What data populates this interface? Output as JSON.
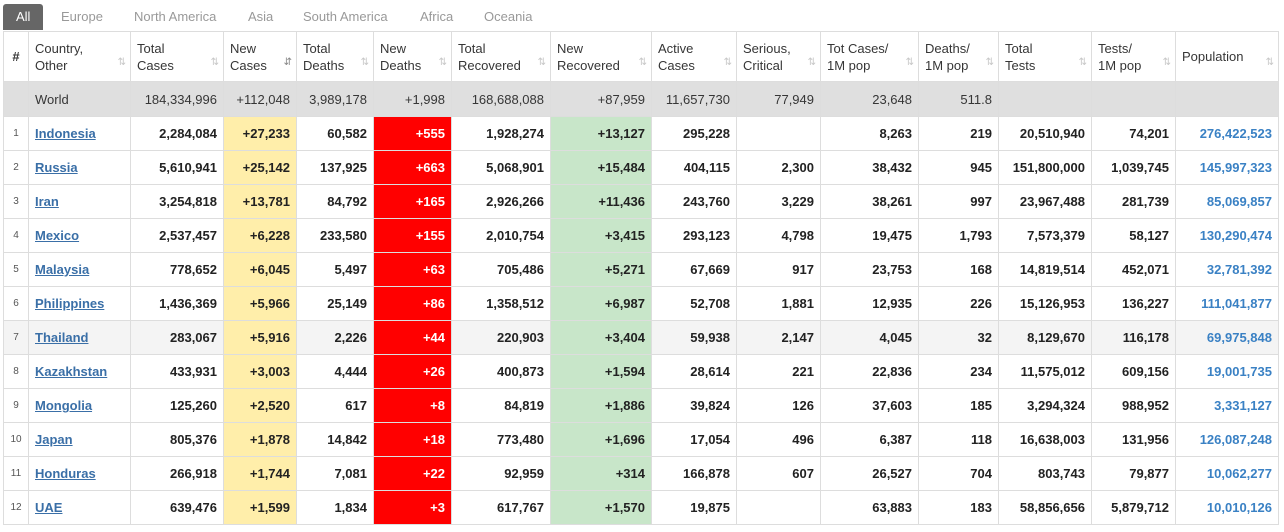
{
  "tabs": [
    "All",
    "Europe",
    "North America",
    "Asia",
    "South America",
    "Africa",
    "Oceania"
  ],
  "headers": [
    {
      "line1": "#",
      "line2": ""
    },
    {
      "line1": "Country,",
      "line2": "Other"
    },
    {
      "line1": "Total",
      "line2": "Cases"
    },
    {
      "line1": "New",
      "line2": "Cases"
    },
    {
      "line1": "Total",
      "line2": "Deaths"
    },
    {
      "line1": "New",
      "line2": "Deaths"
    },
    {
      "line1": "Total",
      "line2": "Recovered"
    },
    {
      "line1": "New",
      "line2": "Recovered"
    },
    {
      "line1": "Active",
      "line2": "Cases"
    },
    {
      "line1": "Serious,",
      "line2": "Critical"
    },
    {
      "line1": "Tot Cases/",
      "line2": "1M pop"
    },
    {
      "line1": "Deaths/",
      "line2": "1M pop"
    },
    {
      "line1": "Total",
      "line2": "Tests"
    },
    {
      "line1": "Tests/",
      "line2": "1M pop"
    },
    {
      "line1": "Population",
      "line2": ""
    }
  ],
  "sort_icon": "⇅",
  "sort_active_icon": "⇵",
  "world": [
    "",
    "World",
    "184,334,996",
    "+112,048",
    "3,989,178",
    "+1,998",
    "168,688,088",
    "+87,959",
    "11,657,730",
    "77,949",
    "23,648",
    "511.8",
    "",
    "",
    ""
  ],
  "rows": [
    [
      "1",
      "Indonesia",
      "2,284,084",
      "+27,233",
      "60,582",
      "+555",
      "1,928,274",
      "+13,127",
      "295,228",
      "",
      "8,263",
      "219",
      "20,510,940",
      "74,201",
      "276,422,523"
    ],
    [
      "2",
      "Russia",
      "5,610,941",
      "+25,142",
      "137,925",
      "+663",
      "5,068,901",
      "+15,484",
      "404,115",
      "2,300",
      "38,432",
      "945",
      "151,800,000",
      "1,039,745",
      "145,997,323"
    ],
    [
      "3",
      "Iran",
      "3,254,818",
      "+13,781",
      "84,792",
      "+165",
      "2,926,266",
      "+11,436",
      "243,760",
      "3,229",
      "38,261",
      "997",
      "23,967,488",
      "281,739",
      "85,069,857"
    ],
    [
      "4",
      "Mexico",
      "2,537,457",
      "+6,228",
      "233,580",
      "+155",
      "2,010,754",
      "+3,415",
      "293,123",
      "4,798",
      "19,475",
      "1,793",
      "7,573,379",
      "58,127",
      "130,290,474"
    ],
    [
      "5",
      "Malaysia",
      "778,652",
      "+6,045",
      "5,497",
      "+63",
      "705,486",
      "+5,271",
      "67,669",
      "917",
      "23,753",
      "168",
      "14,819,514",
      "452,071",
      "32,781,392"
    ],
    [
      "6",
      "Philippines",
      "1,436,369",
      "+5,966",
      "25,149",
      "+86",
      "1,358,512",
      "+6,987",
      "52,708",
      "1,881",
      "12,935",
      "226",
      "15,126,953",
      "136,227",
      "111,041,877"
    ],
    [
      "7",
      "Thailand",
      "283,067",
      "+5,916",
      "2,226",
      "+44",
      "220,903",
      "+3,404",
      "59,938",
      "2,147",
      "4,045",
      "32",
      "8,129,670",
      "116,178",
      "69,975,848"
    ],
    [
      "8",
      "Kazakhstan",
      "433,931",
      "+3,003",
      "4,444",
      "+26",
      "400,873",
      "+1,594",
      "28,614",
      "221",
      "22,836",
      "234",
      "11,575,012",
      "609,156",
      "19,001,735"
    ],
    [
      "9",
      "Mongolia",
      "125,260",
      "+2,520",
      "617",
      "+8",
      "84,819",
      "+1,886",
      "39,824",
      "126",
      "37,603",
      "185",
      "3,294,324",
      "988,952",
      "3,331,127"
    ],
    [
      "10",
      "Japan",
      "805,376",
      "+1,878",
      "14,842",
      "+18",
      "773,480",
      "+1,696",
      "17,054",
      "496",
      "6,387",
      "118",
      "16,638,003",
      "131,956",
      "126,087,248"
    ],
    [
      "11",
      "Honduras",
      "266,918",
      "+1,744",
      "7,081",
      "+22",
      "92,959",
      "+314",
      "166,878",
      "607",
      "26,527",
      "704",
      "803,743",
      "79,877",
      "10,062,277"
    ],
    [
      "12",
      "UAE",
      "639,476",
      "+1,599",
      "1,834",
      "+3",
      "617,767",
      "+1,570",
      "19,875",
      "",
      "63,883",
      "183",
      "58,856,656",
      "5,879,712",
      "10,010,126"
    ]
  ]
}
